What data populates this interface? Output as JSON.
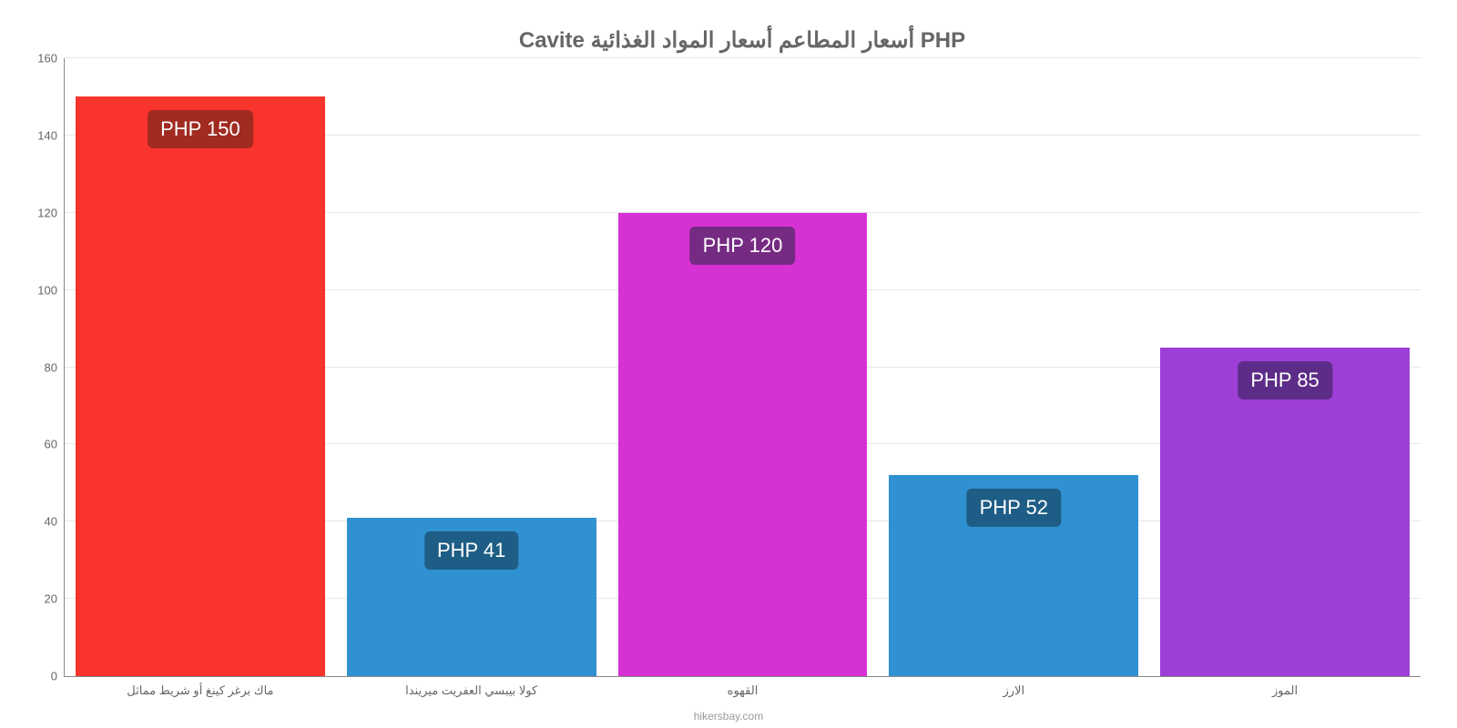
{
  "chart": {
    "type": "bar",
    "title": "Cavite أسعار المطاعم أسعار المواد الغذائية PHP",
    "title_fontsize": 24,
    "title_color": "#666666",
    "background_color": "#ffffff",
    "grid_color": "#e6e6e6",
    "axis_color": "#888888",
    "tick_font_color": "#666666",
    "tick_fontsize": 13,
    "ylim_min": 0,
    "ylim_max": 160,
    "ytick_step": 20,
    "yticks": [
      0,
      20,
      40,
      60,
      80,
      100,
      120,
      140,
      160
    ],
    "bar_width_pct": 92,
    "value_label_fontsize": 22,
    "value_label_text_color": "#ffffff",
    "categories": [
      "ماك برغر كينغ أو شريط مماثل",
      "كولا بيبسي العفريت ميريندا",
      "القهوه",
      "الارز",
      "الموز"
    ],
    "values": [
      150,
      41,
      120,
      52,
      85
    ],
    "value_labels": [
      "PHP 150",
      "PHP 41",
      "PHP 120",
      "PHP 52",
      "PHP 85"
    ],
    "bar_colors": [
      "#f9342c",
      "#2f91d0",
      "#d631d3",
      "#2f91d0",
      "#9d3fd7"
    ],
    "badge_colors": [
      "#a12a21",
      "#1e5d85",
      "#752b82",
      "#1e5d85",
      "#5d2c88"
    ],
    "credit": "hikersbay.com"
  }
}
